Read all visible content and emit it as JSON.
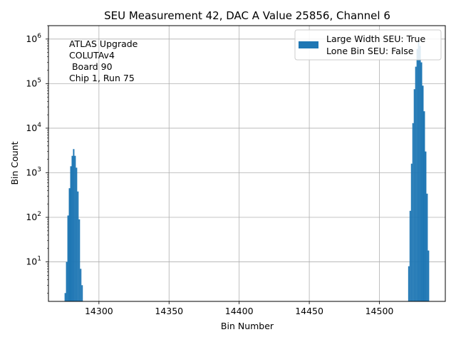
{
  "chart_data": {
    "type": "bar",
    "title": "SEU Measurement 42, DAC A Value 25856, Channel 6",
    "xlabel": "Bin Number",
    "ylabel": "Bin Count",
    "yscale": "log",
    "xlim": [
      14264,
      14547
    ],
    "ylim": [
      1.3,
      2000000
    ],
    "grid": true,
    "bar_color": "#1f77b4",
    "xticks": [
      14300,
      14350,
      14400,
      14450,
      14500
    ],
    "yticks": [
      {
        "value": 10,
        "base": "10",
        "exp": "1"
      },
      {
        "value": 100,
        "base": "10",
        "exp": "2"
      },
      {
        "value": 1000,
        "base": "10",
        "exp": "3"
      },
      {
        "value": 10000,
        "base": "10",
        "exp": "4"
      },
      {
        "value": 100000,
        "base": "10",
        "exp": "5"
      },
      {
        "value": 1000000,
        "base": "10",
        "exp": "6"
      }
    ],
    "annotation": [
      "ATLAS Upgrade",
      "COLUTAv4",
      " Board 90",
      "Chip 1, Run 75"
    ],
    "legend": {
      "position": "upper right",
      "lines": [
        "Large Width SEU: True",
        "Lone Bin SEU: False"
      ]
    },
    "x": [
      14276,
      14277,
      14278,
      14279,
      14280,
      14281,
      14282,
      14283,
      14284,
      14285,
      14286,
      14287,
      14521,
      14522,
      14523,
      14524,
      14525,
      14526,
      14527,
      14528,
      14529,
      14530,
      14531,
      14532,
      14533,
      14534,
      14535
    ],
    "values": [
      2,
      10,
      110,
      450,
      1400,
      2400,
      3400,
      2400,
      1300,
      380,
      90,
      7,
      8,
      140,
      1600,
      13000,
      75000,
      240000,
      600000,
      900000,
      700000,
      300000,
      90000,
      24000,
      3000,
      340,
      18
    ],
    "extra_tail": {
      "x": 14288,
      "value": 3
    }
  }
}
